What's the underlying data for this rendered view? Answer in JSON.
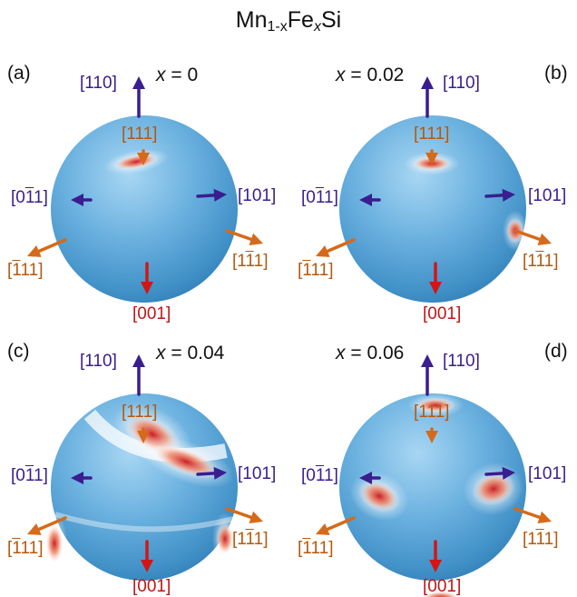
{
  "title": {
    "prefix": "Mn",
    "sub1": "1-x",
    "mid": "Fe",
    "sub2": "x",
    "suffix": "Si"
  },
  "colors": {
    "sphere": "#5fa8d8",
    "purple": "#3a1d8f",
    "orange": "#d56a1a",
    "red": "#d41515"
  },
  "panels": [
    {
      "id": "a",
      "letter": "(a)",
      "x_value": "0"
    },
    {
      "id": "b",
      "letter": "(b)",
      "x_value": "0.02"
    },
    {
      "id": "c",
      "letter": "(c)",
      "x_value": "0.04"
    },
    {
      "id": "d",
      "letter": "(d)",
      "x_value": "0.06"
    }
  ],
  "directions": {
    "d110": "[110]",
    "d111": "[111]",
    "d011": "[011]",
    "d101": "[101]",
    "d1b11": "[111]",
    "d11b1": "[111]",
    "d001": "[001]"
  }
}
